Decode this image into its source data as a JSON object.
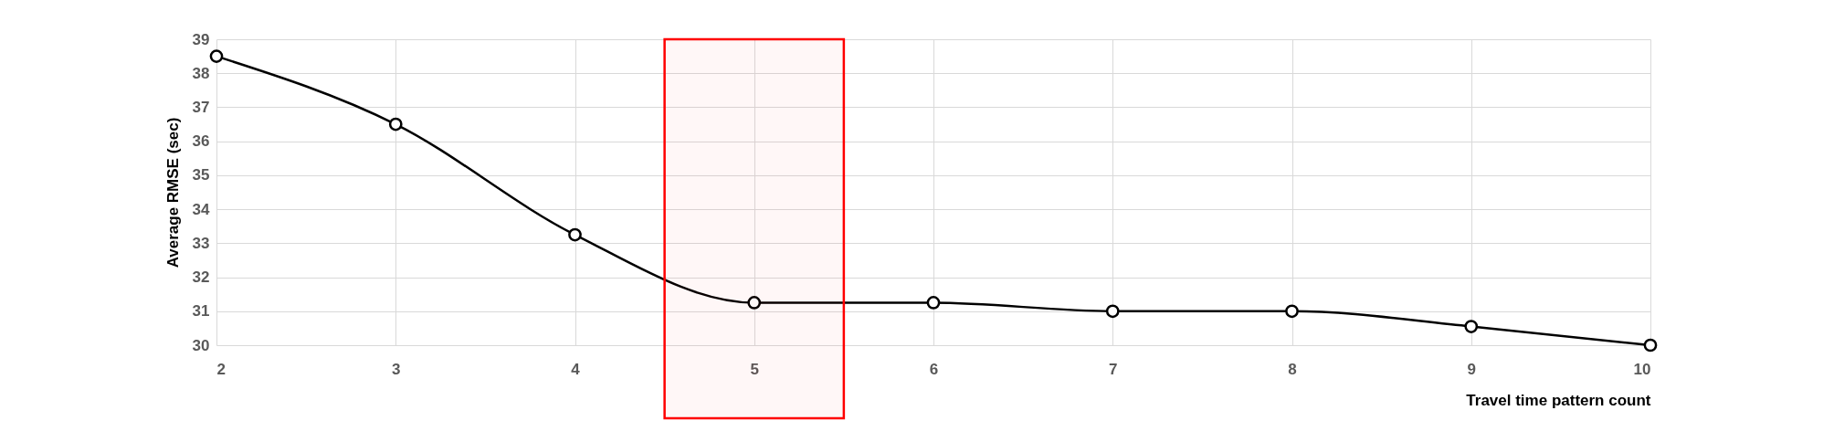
{
  "chart_data": {
    "type": "line",
    "xlabel": "Travel time pattern count",
    "ylabel": "Average RMSE (sec)",
    "x": [
      2,
      3,
      4,
      5,
      6,
      7,
      8,
      9,
      10
    ],
    "series": [
      {
        "color": "#000000",
        "values": [
          38.5,
          36.5,
          33.25,
          31.25,
          31.25,
          31.0,
          31.0,
          30.55,
          30.0
        ]
      }
    ],
    "xlim": [
      2,
      10
    ],
    "xticks": [
      2,
      3,
      4,
      5,
      6,
      7,
      8,
      9,
      10
    ],
    "ylim": [
      30,
      39
    ],
    "yticks": [
      30,
      31,
      32,
      33,
      34,
      35,
      36,
      37,
      38,
      39
    ],
    "grid": true,
    "marker": "circle",
    "line_style": "solid",
    "bands": [
      {
        "axis": "x",
        "from": 4.5,
        "to": 5.5,
        "color": "#ff0000"
      }
    ]
  }
}
